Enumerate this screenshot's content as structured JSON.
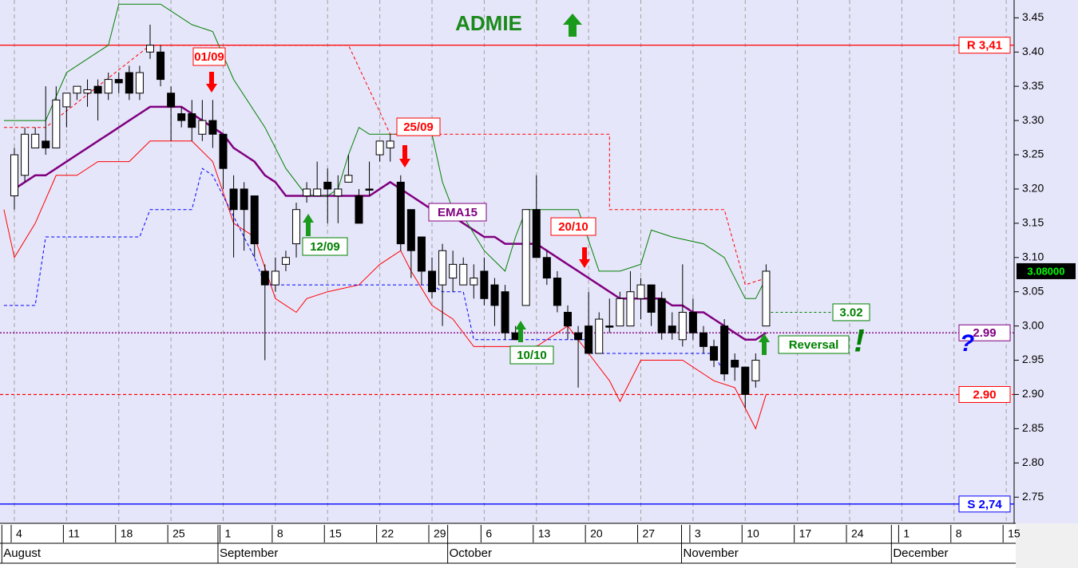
{
  "chart_data": {
    "type": "candlestick",
    "title": "ADMIE",
    "ylim": [
      2.713,
      3.476
    ],
    "yticks": [
      {
        "value": 2.75,
        "label": "2.75"
      },
      {
        "value": 2.8,
        "label": "2.80"
      },
      2.85,
      {
        "value": 2.9,
        "label": "2.90"
      },
      2.95,
      {
        "value": 3.0,
        "label": "3.00"
      },
      3.05,
      {
        "value": 3.1,
        "label": "3.10"
      },
      3.15,
      {
        "value": 3.2,
        "label": "3.20"
      },
      3.25,
      {
        "value": 3.3,
        "label": "3.30"
      },
      3.35,
      {
        "value": 3.4,
        "label": "3.40"
      },
      3.45
    ],
    "xlim": [
      -1.3,
      95.6
    ],
    "xticks": [
      {
        "value": 0,
        "label": "4"
      },
      {
        "value": 5,
        "label": "11"
      },
      {
        "value": 10,
        "label": "18"
      },
      {
        "value": 15,
        "label": "25"
      },
      {
        "value": 20,
        "label": "1"
      },
      {
        "value": 25,
        "label": "8"
      },
      {
        "value": 30,
        "label": "15"
      },
      {
        "value": 35,
        "label": "22"
      },
      {
        "value": 40,
        "label": "29"
      },
      {
        "value": 45,
        "label": "6"
      },
      {
        "value": 50,
        "label": "13"
      },
      {
        "value": 55,
        "label": "20"
      },
      {
        "value": 60,
        "label": "27"
      },
      {
        "value": 65,
        "label": "3"
      },
      {
        "value": 70,
        "label": "10"
      },
      {
        "value": 75,
        "label": "17"
      },
      {
        "value": 80,
        "label": "24"
      },
      {
        "value": 85,
        "label": "1"
      },
      {
        "value": 90,
        "label": "8"
      },
      {
        "value": 95,
        "label": "15"
      }
    ],
    "months": [
      {
        "value": -1.2,
        "label": "August"
      },
      {
        "value": 19.5,
        "label": "September"
      },
      {
        "value": 41.5,
        "label": "October"
      },
      {
        "value": 63.9,
        "label": "November"
      },
      {
        "value": 84,
        "label": "December"
      }
    ],
    "grid": true,
    "candles": {
      "x": [
        0,
        1,
        2,
        3,
        4,
        5,
        6,
        7,
        8,
        9,
        10,
        11,
        12,
        13,
        14,
        15,
        16,
        17,
        18,
        19,
        20,
        21,
        22,
        23,
        24,
        25,
        26,
        27,
        28,
        29,
        30,
        31,
        32,
        33,
        34,
        35,
        36,
        37,
        38,
        39,
        40,
        41,
        42,
        43,
        44,
        45,
        46,
        47,
        48,
        49,
        50,
        51,
        52,
        53,
        54,
        55,
        56,
        57,
        58,
        59,
        60,
        61,
        62,
        63,
        64,
        65,
        66,
        67,
        68,
        69,
        70,
        71,
        72
      ],
      "open": [
        3.19,
        3.22,
        3.26,
        3.27,
        3.26,
        3.32,
        3.34,
        3.34,
        3.35,
        3.34,
        3.36,
        3.37,
        3.34,
        3.4,
        3.4,
        3.34,
        3.31,
        3.31,
        3.28,
        3.3,
        3.28,
        3.2,
        3.2,
        3.19,
        3.08,
        3.06,
        3.09,
        3.12,
        3.19,
        3.19,
        3.21,
        3.19,
        3.21,
        3.19,
        3.2,
        3.25,
        3.26,
        3.21,
        3.17,
        3.13,
        3.08,
        3.06,
        3.07,
        3.06,
        3.06,
        3.08,
        3.06,
        3.05,
        2.99,
        3.03,
        3.17,
        3.1,
        3.07,
        3.02,
        2.99,
        3.0,
        2.96,
        3.0,
        3.0,
        3.0,
        3.04,
        3.06,
        3.04,
        3.0,
        2.98,
        3.02,
        2.99,
        2.97,
        3.0,
        2.95,
        2.94,
        2.92,
        3.0
      ],
      "high": [
        3.26,
        3.29,
        3.29,
        3.35,
        3.35,
        3.34,
        3.35,
        3.36,
        3.36,
        3.37,
        3.37,
        3.38,
        3.38,
        3.44,
        3.41,
        3.35,
        3.32,
        3.33,
        3.33,
        3.33,
        3.28,
        3.22,
        3.21,
        3.19,
        3.09,
        3.1,
        3.11,
        3.18,
        3.21,
        3.24,
        3.23,
        3.22,
        3.25,
        3.2,
        3.24,
        3.27,
        3.28,
        3.22,
        3.17,
        3.13,
        3.1,
        3.12,
        3.11,
        3.1,
        3.09,
        3.1,
        3.07,
        3.06,
        3.0,
        3.17,
        3.22,
        3.11,
        3.08,
        3.03,
        3.0,
        3.05,
        3.02,
        3.04,
        3.05,
        3.08,
        3.07,
        3.06,
        3.05,
        3.02,
        3.09,
        3.04,
        3.0,
        2.98,
        3.01,
        2.96,
        2.94,
        2.96,
        3.09
      ],
      "low": [
        3.17,
        3.21,
        3.26,
        3.25,
        3.26,
        3.29,
        3.33,
        3.32,
        3.3,
        3.33,
        3.34,
        3.33,
        3.33,
        3.39,
        3.35,
        3.27,
        3.29,
        3.27,
        3.27,
        3.26,
        3.2,
        3.1,
        3.11,
        3.1,
        2.95,
        3.05,
        3.08,
        3.1,
        3.18,
        3.19,
        3.15,
        3.15,
        3.21,
        3.15,
        3.19,
        3.24,
        3.24,
        3.11,
        3.07,
        3.06,
        3.04,
        3.0,
        3.05,
        3.06,
        3.04,
        3.03,
        3.0,
        2.98,
        2.98,
        3.03,
        3.1,
        3.06,
        3.02,
        2.98,
        2.91,
        2.96,
        2.96,
        2.99,
        3.0,
        3.0,
        3.01,
        3.0,
        2.98,
        2.98,
        2.97,
        2.98,
        2.96,
        2.94,
        2.92,
        2.92,
        2.88,
        2.91,
        3.0
      ],
      "close": [
        3.25,
        3.28,
        3.28,
        3.26,
        3.33,
        3.34,
        3.35,
        3.345,
        3.34,
        3.36,
        3.355,
        3.34,
        3.37,
        3.41,
        3.36,
        3.32,
        3.3,
        3.29,
        3.3,
        3.28,
        3.23,
        3.17,
        3.17,
        3.12,
        3.06,
        3.08,
        3.1,
        3.17,
        3.2,
        3.2,
        3.2,
        3.2,
        3.22,
        3.15,
        3.2,
        3.27,
        3.27,
        3.12,
        3.11,
        3.08,
        3.05,
        3.11,
        3.09,
        3.09,
        3.07,
        3.04,
        3.03,
        2.99,
        2.98,
        3.17,
        3.1,
        3.07,
        3.03,
        3.0,
        2.98,
        2.96,
        3.01,
        3.0,
        3.04,
        3.05,
        3.06,
        3.02,
        2.99,
        2.99,
        3.02,
        2.99,
        2.97,
        2.95,
        2.93,
        2.94,
        2.9,
        2.95,
        3.08
      ]
    },
    "lines": [
      {
        "label": "EMA15",
        "color": "#800080",
        "style": "solid",
        "width": 2.5,
        "x": [
          0,
          1,
          2,
          3,
          4,
          5,
          6,
          7,
          8,
          9,
          10,
          11,
          12,
          13,
          14,
          15,
          16,
          17,
          18,
          19,
          20,
          21,
          22,
          23,
          24,
          25,
          26,
          27,
          28,
          29,
          30,
          31,
          32,
          33,
          34,
          35,
          36,
          37,
          38,
          39,
          40,
          41,
          42,
          43,
          44,
          45,
          46,
          47,
          48,
          49,
          50,
          51,
          52,
          53,
          54,
          55,
          56,
          57,
          58,
          59,
          60,
          61,
          62,
          63,
          64,
          65,
          66,
          67,
          68,
          69,
          70,
          71,
          72
        ],
        "values": [
          3.2,
          3.21,
          3.22,
          3.22,
          3.23,
          3.24,
          3.25,
          3.26,
          3.27,
          3.28,
          3.29,
          3.3,
          3.31,
          3.32,
          3.32,
          3.32,
          3.32,
          3.31,
          3.3,
          3.29,
          3.28,
          3.26,
          3.25,
          3.24,
          3.22,
          3.21,
          3.19,
          3.19,
          3.19,
          3.19,
          3.19,
          3.19,
          3.19,
          3.19,
          3.19,
          3.2,
          3.21,
          3.2,
          3.19,
          3.18,
          3.17,
          3.16,
          3.16,
          3.15,
          3.14,
          3.13,
          3.13,
          3.12,
          3.12,
          3.12,
          3.12,
          3.11,
          3.1,
          3.09,
          3.08,
          3.07,
          3.06,
          3.05,
          3.04,
          3.04,
          3.04,
          3.04,
          3.04,
          3.03,
          3.03,
          3.02,
          3.02,
          3.01,
          3.0,
          2.99,
          2.98,
          2.98,
          2.99
        ]
      },
      {
        "color": "#008000",
        "style": "solid",
        "width": 1,
        "x": [
          -1,
          3,
          5,
          8,
          9,
          10,
          14,
          17,
          19,
          21,
          24,
          26,
          28,
          30,
          31,
          32,
          33,
          34,
          35,
          40,
          41,
          42,
          43,
          45,
          47,
          48,
          49,
          52,
          54,
          56,
          58,
          60,
          61,
          63,
          66,
          68,
          70,
          71,
          72
        ],
        "values": [
          3.3,
          3.3,
          3.37,
          3.4,
          3.41,
          3.47,
          3.47,
          3.44,
          3.43,
          3.36,
          3.29,
          3.23,
          3.19,
          3.19,
          3.2,
          3.25,
          3.29,
          3.28,
          3.28,
          3.28,
          3.21,
          3.17,
          3.16,
          3.11,
          3.08,
          3.13,
          3.17,
          3.17,
          3.17,
          3.08,
          3.08,
          3.09,
          3.14,
          3.13,
          3.12,
          3.1,
          3.04,
          3.04,
          3.07
        ]
      },
      {
        "color": "#ff0000",
        "style": "solid",
        "width": 1,
        "x": [
          -1,
          0,
          2,
          4,
          6,
          8,
          11,
          13,
          17,
          19,
          21,
          23,
          25,
          27,
          28,
          30,
          33,
          35,
          37,
          38,
          40,
          42,
          44,
          46,
          50,
          52,
          53,
          55,
          57,
          58,
          60,
          64,
          67,
          69,
          70,
          71,
          72
        ],
        "values": [
          3.17,
          3.1,
          3.15,
          3.22,
          3.22,
          3.24,
          3.24,
          3.27,
          3.27,
          3.24,
          3.15,
          3.13,
          3.04,
          3.02,
          3.04,
          3.05,
          3.06,
          3.09,
          3.11,
          3.08,
          3.03,
          3.01,
          2.97,
          2.97,
          2.97,
          2.99,
          3.0,
          2.96,
          2.92,
          2.89,
          2.95,
          2.95,
          2.92,
          2.91,
          2.88,
          2.85,
          2.9
        ]
      },
      {
        "color": "#ff0000",
        "style": "dashed",
        "width": 1,
        "x": [
          -1,
          3,
          13,
          32,
          36,
          57,
          57,
          68,
          70,
          72
        ],
        "values": [
          3.29,
          3.29,
          3.41,
          3.41,
          3.28,
          3.28,
          3.17,
          3.17,
          3.06,
          3.07
        ]
      },
      {
        "color": "#0000ff",
        "style": "dashed",
        "width": 1,
        "x": [
          -1,
          2,
          3,
          5,
          12,
          13,
          14,
          17,
          18,
          19,
          23,
          24,
          40,
          41,
          43,
          44,
          55,
          55,
          67,
          68
        ],
        "values": [
          3.03,
          3.03,
          3.13,
          3.13,
          3.13,
          3.17,
          3.17,
          3.17,
          3.23,
          3.22,
          3.1,
          3.06,
          3.06,
          3.05,
          3.05,
          2.98,
          2.98,
          2.96,
          2.96,
          2.93
        ]
      }
    ],
    "levels": [
      {
        "label": "R 3,41",
        "value": 3.41,
        "color": "#ff0000",
        "style": "solid"
      },
      {
        "label": "2.99",
        "value": 2.99,
        "color": "#800080",
        "style": "dotted"
      },
      {
        "label": "2.90",
        "value": 2.9,
        "color": "#ff0000",
        "style": "dashed"
      },
      {
        "label": "S 2,74",
        "value": 2.74,
        "color": "#0000ff",
        "style": "solid"
      }
    ],
    "target": {
      "label": "3.02",
      "value": 3.02,
      "color": "#008000"
    },
    "last_price": {
      "label": "3.08000",
      "value": 3.08
    },
    "signals": [
      {
        "label": "01/09",
        "direction": "down",
        "color": "#ff0000"
      },
      {
        "label": "12/09",
        "direction": "up",
        "color": "#008000"
      },
      {
        "label": "25/09",
        "direction": "down",
        "color": "#ff0000"
      },
      {
        "label": "10/10",
        "direction": "up",
        "color": "#008000"
      },
      {
        "label": "20/10",
        "direction": "down",
        "color": "#ff0000"
      },
      {
        "label": "Reversal",
        "direction": "up",
        "color": "#008000"
      }
    ],
    "marks": [
      {
        "label": "?",
        "color": "#0000ff"
      },
      {
        "label": "!",
        "color": "#008000"
      }
    ]
  }
}
